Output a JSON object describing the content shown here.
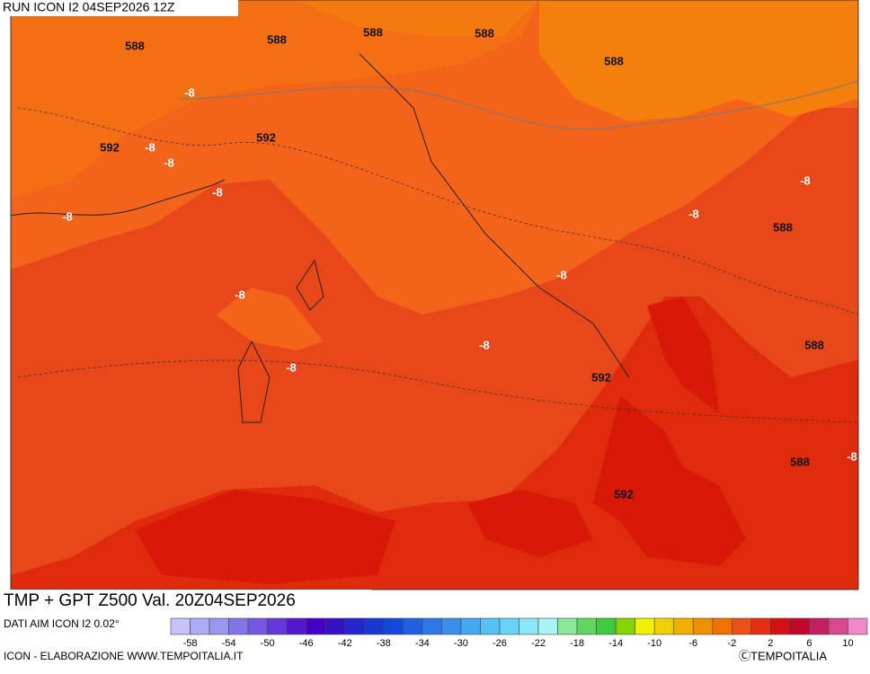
{
  "header": {
    "run": "RUN ICON I2 04SEP2026 12Z"
  },
  "map": {
    "title": "TMP + GPT Z500 Val. 20Z04SEP2026",
    "labels": [
      "588",
      "588",
      "588",
      "588",
      "588",
      "-8",
      "592",
      "-8",
      "592",
      "-8",
      "-8",
      "-8",
      "-8",
      "-8",
      "588",
      "-8",
      "-8",
      "588",
      "-8",
      "-8",
      "592",
      "588",
      "-8",
      "592"
    ]
  },
  "colorbar": {
    "source": "DATI AIM ICON I2 0.02°",
    "ticks": [
      -58,
      -54,
      -50,
      -46,
      -42,
      -38,
      -34,
      -30,
      -26,
      -22,
      -18,
      -14,
      -10,
      -6,
      -2,
      2,
      6,
      10
    ],
    "colors": [
      "#c4c4f8",
      "#acacf2",
      "#9898ee",
      "#8474e8",
      "#7458e2",
      "#6438d8",
      "#5418cc",
      "#4400c4",
      "#3410c4",
      "#2424cc",
      "#1838d4",
      "#1448dc",
      "#2060e4",
      "#2c78e8",
      "#3890ec",
      "#44a8f0",
      "#54c0f4",
      "#68d4f8",
      "#88e8f8",
      "#a8f4f4",
      "#88e898",
      "#60d860",
      "#40c840",
      "#88d400",
      "#f0f000",
      "#f0d000",
      "#f0b000",
      "#f09000",
      "#f07000",
      "#ec5018",
      "#e43010",
      "#d41010",
      "#c00828",
      "#c02060",
      "#d84890",
      "#f088c8"
    ]
  },
  "footer": {
    "credit": "ICON - ELABORAZIONE WWW.TEMPOITALIA.IT",
    "copyright": "ⒸTEMPOITALIA"
  }
}
